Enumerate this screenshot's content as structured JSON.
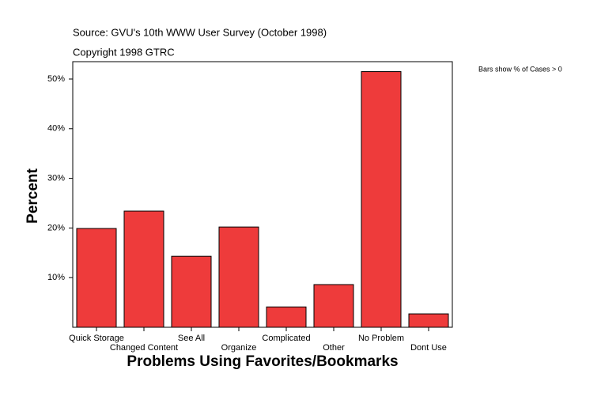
{
  "chart_data": {
    "type": "bar",
    "title": "Source: GVU's 10th WWW User Survey (October 1998)",
    "subtitle": "Copyright 1998 GTRC",
    "annotation": "Bars show % of Cases > 0",
    "x_label": "Problems Using Favorites/Bookmarks",
    "y_label": "Percent",
    "categories": [
      "Quick Storage",
      "Changed Content",
      "See All",
      "Organize",
      "Complicated",
      "Other",
      "No Problem",
      "Dont Use"
    ],
    "values": [
      19.9,
      23.4,
      14.3,
      20.2,
      4.1,
      8.6,
      51.5,
      2.7
    ],
    "color": "#ee3b3b",
    "ylim": [
      0,
      53.5
    ],
    "yticks": [
      {
        "value": 10,
        "label": "10%"
      },
      {
        "value": 20,
        "label": "20%"
      },
      {
        "value": 30,
        "label": "30%"
      },
      {
        "value": 40,
        "label": "40%"
      },
      {
        "value": 50,
        "label": "50%"
      }
    ]
  }
}
